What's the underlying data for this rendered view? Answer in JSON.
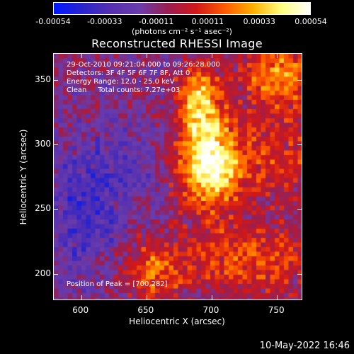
{
  "colorbar": {
    "ticks": [
      "-0.00054",
      "-0.00033",
      "-0.00011",
      "0.00011",
      "0.00033",
      "0.00054"
    ],
    "units": "(photons cm⁻² s⁻¹ asec⁻²)",
    "colors": [
      "#0018ff",
      "#2a24cc",
      "#5530b0",
      "#6a3cac",
      "#9a1e50",
      "#d01818",
      "#ff5a00",
      "#ffb000",
      "#ffff80",
      "#ffffff"
    ]
  },
  "title": "Reconstructed RHESSI Image",
  "info": {
    "line1": "29-Oct-2010 09:21:04.000 to 09:26:28.000",
    "line2": "Detectors: 3F 4F 5F 6F 7F 8F, Att 0",
    "line3": "Energy Range: 12.0 - 25.0 keV",
    "line4": "Clean     Total counts: 7.27e+03",
    "peak": "Position of Peak = [700,282]"
  },
  "axes": {
    "x_title": "Heliocentric X (arcsec)",
    "y_title": "Heliocentric Y (arcsec)",
    "x_ticks": [
      "600",
      "650",
      "700",
      "750"
    ],
    "y_ticks": [
      "200",
      "250",
      "300",
      "350"
    ],
    "xlim": [
      579,
      770
    ],
    "ylim": [
      179,
      370
    ]
  },
  "footer": {
    "date": "10-May-2022 16:46"
  },
  "chart_data": {
    "type": "heatmap",
    "title": "Reconstructed RHESSI Image",
    "xlabel": "Heliocentric X (arcsec)",
    "ylabel": "Heliocentric Y (arcsec)",
    "xlim": [
      579,
      770
    ],
    "ylim": [
      179,
      370
    ],
    "value_range": [
      -0.00054,
      0.00054
    ],
    "peak_position": [
      700,
      282
    ]
  }
}
